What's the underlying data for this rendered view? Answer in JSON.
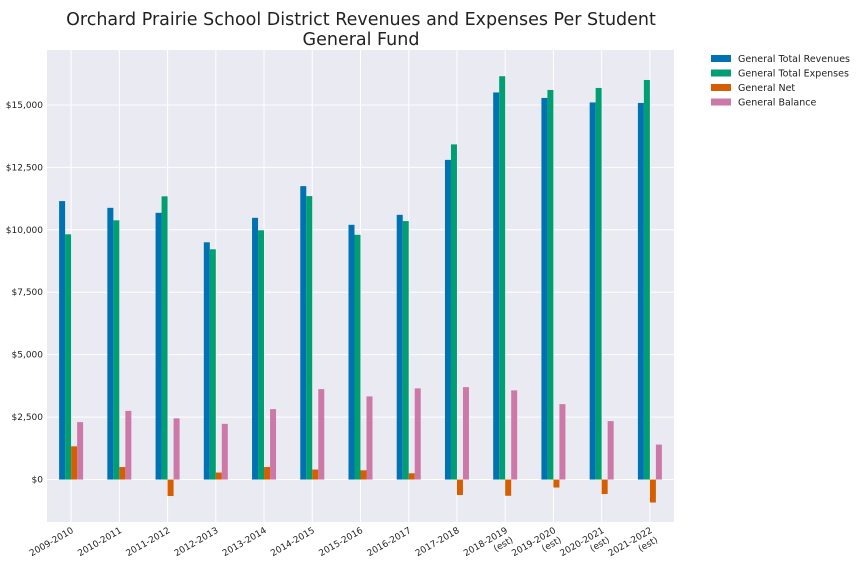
{
  "chart_data": {
    "type": "bar",
    "title": [
      "Orchard Prairie School District Revenues and Expenses Per Student",
      "General Fund"
    ],
    "xlabel": "",
    "ylabel": "",
    "categories": [
      [
        "2009-2010"
      ],
      [
        "2010-2011"
      ],
      [
        "2011-2012"
      ],
      [
        "2012-2013"
      ],
      [
        "2013-2014"
      ],
      [
        "2014-2015"
      ],
      [
        "2015-2016"
      ],
      [
        "2016-2017"
      ],
      [
        "2017-2018"
      ],
      [
        "2018-2019",
        "(est)"
      ],
      [
        "2019-2020",
        "(est)"
      ],
      [
        "2020-2021",
        "(est)"
      ],
      [
        "2021-2022",
        "(est)"
      ]
    ],
    "series": [
      {
        "name": "General Total Revenues",
        "color": "#0072b2",
        "values": [
          11150,
          10880,
          10680,
          9500,
          10480,
          11750,
          10200,
          10600,
          12800,
          15500,
          15280,
          15100,
          15080
        ]
      },
      {
        "name": "General Total Expenses",
        "color": "#009e73",
        "values": [
          9820,
          10380,
          11340,
          9220,
          9980,
          11350,
          9800,
          10350,
          13420,
          16150,
          15600,
          15680,
          16000
        ]
      },
      {
        "name": "General Net",
        "color": "#d55e00",
        "values": [
          1330,
          500,
          -660,
          280,
          500,
          400,
          370,
          250,
          -620,
          -650,
          -320,
          -580,
          -920
        ]
      },
      {
        "name": "General Balance",
        "color": "#cc79a7",
        "values": [
          2300,
          2750,
          2450,
          2230,
          2820,
          3620,
          3330,
          3650,
          3700,
          3570,
          3020,
          2340,
          1400
        ]
      }
    ],
    "yticks": [
      0,
      2500,
      5000,
      7500,
      10000,
      12500,
      15000
    ],
    "ytick_labels": [
      "$0",
      "$2,500",
      "$5,000",
      "$7,500",
      "$10,000",
      "$12,500",
      "$15,000"
    ],
    "ylim": [
      -1700,
      17200
    ],
    "grid": true,
    "legend_position": "outside-top-right",
    "background_color": "#eaeaf2"
  }
}
